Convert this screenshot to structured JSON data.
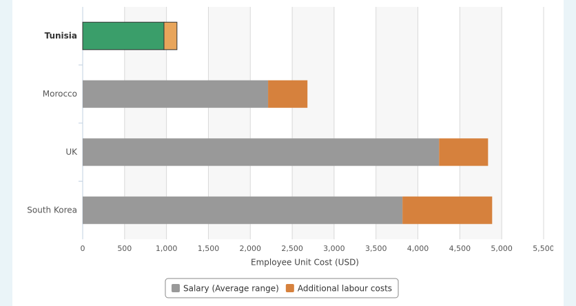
{
  "chart_data": {
    "type": "stacked-bar-horizontal",
    "categories": [
      "Tunisia",
      "Morocco",
      "UK",
      "South Korea"
    ],
    "series": [
      {
        "name": "Salary (Average range)",
        "color": "#999999",
        "highlight_color": "#3a9e6a",
        "values": [
          970,
          2212,
          4252,
          3816
        ]
      },
      {
        "name": "Additional labour costs",
        "color": "#d6813d",
        "highlight_color": "#e8a55b",
        "values": [
          155,
          470,
          585,
          1070
        ]
      }
    ],
    "highlight": "Tunisia",
    "xlabel": "Employee Unit Cost (USD)",
    "xlim": [
      0,
      5500
    ],
    "xticks": [
      0,
      500,
      {
        "value": 1000,
        "label": "1,000"
      },
      {
        "value": 1500,
        "label": "1,500"
      },
      {
        "value": 2000,
        "label": "2,000"
      },
      {
        "value": 2500,
        "label": "2,500"
      },
      {
        "value": 3000,
        "label": "3,000"
      },
      {
        "value": 3500,
        "label": "3,500"
      },
      {
        "value": 4000,
        "label": "4,000"
      },
      {
        "value": 4500,
        "label": "4,500"
      },
      {
        "value": 5000,
        "label": "5,000"
      },
      {
        "value": 5500,
        "label": "5,500"
      }
    ],
    "grid": true,
    "legend": "bottom"
  }
}
